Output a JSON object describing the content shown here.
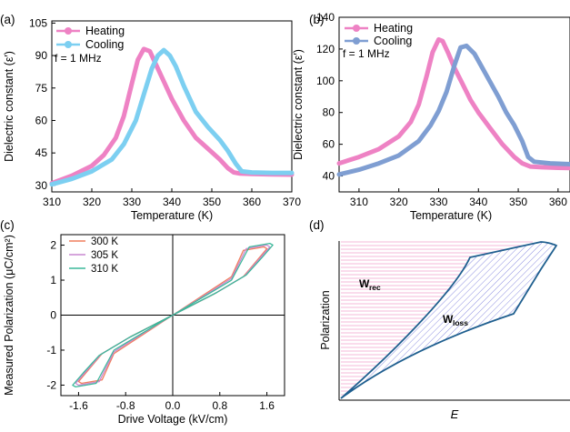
{
  "colors": {
    "heating": "#ee82c4",
    "cooling_a": "#7ccff1",
    "cooling_b": "#7f9ed2",
    "c300": "#f07f5f",
    "c305": "#c988d0",
    "c310": "#3cb89a",
    "hatch_loss": "#6f72d8",
    "hatch_rec": "#f29ac8",
    "outline_d": "#1f5f8f"
  },
  "chart_data": [
    {
      "id": "a",
      "type": "line",
      "panel_label": "(a)",
      "xlabel": "Temperature (K)",
      "ylabel": "Dielectric constant (ε′)",
      "xlim": [
        310,
        370
      ],
      "ylim": [
        27,
        106
      ],
      "xticks": [
        310,
        320,
        330,
        340,
        350,
        360,
        370
      ],
      "yticks": [
        30,
        45,
        60,
        75,
        90,
        105
      ],
      "annotation": "f = 1 MHz",
      "legend_position": "top-left",
      "series": [
        {
          "name": "Heating",
          "color_key": "heating",
          "x": [
            310,
            315,
            320,
            323,
            326,
            328,
            330,
            331.5,
            333,
            334.5,
            336,
            338,
            340,
            343,
            346,
            349,
            352,
            354,
            355.5,
            357,
            360,
            365,
            370
          ],
          "y": [
            31,
            34.5,
            39,
            44,
            52,
            62,
            77,
            88,
            93,
            92,
            86,
            78,
            70,
            60,
            52,
            47,
            42,
            38,
            36,
            35.5,
            35.3,
            35.1,
            35
          ]
        },
        {
          "name": "Cooling",
          "color_key": "cooling_a",
          "x": [
            310,
            315,
            320,
            325,
            328,
            331,
            333,
            335,
            336.5,
            338,
            339.5,
            341,
            343,
            346,
            349,
            352,
            354,
            356,
            357.5,
            360,
            365,
            370
          ],
          "y": [
            30.5,
            33,
            36.5,
            42,
            49,
            60,
            72,
            84,
            90,
            92.5,
            90,
            85,
            76,
            64,
            57,
            51,
            46,
            40,
            36.5,
            36,
            35.8,
            35.8
          ]
        }
      ]
    },
    {
      "id": "b",
      "type": "line",
      "panel_label": "(b)",
      "xlabel": "Temperature (K)",
      "ylabel": "Dielectric constant (ε′)",
      "xlim": [
        305,
        363
      ],
      "ylim": [
        30,
        140
      ],
      "xticks": [
        310,
        320,
        330,
        340,
        350,
        360
      ],
      "yticks": [
        40,
        60,
        80,
        100,
        120,
        140
      ],
      "annotation": "f = 1 MHz",
      "legend_position": "top-left",
      "series": [
        {
          "name": "Heating",
          "color_key": "heating",
          "x": [
            305,
            310,
            315,
            320,
            323,
            325,
            327,
            328.5,
            330,
            331,
            332.5,
            334,
            336,
            338,
            340,
            343,
            346,
            349,
            351,
            353,
            356,
            360,
            363
          ],
          "y": [
            48,
            52,
            57,
            65,
            74,
            85,
            103,
            118,
            126,
            125,
            117,
            108,
            98,
            88,
            80,
            70,
            60,
            52,
            48,
            46,
            45.5,
            45.2,
            45
          ]
        },
        {
          "name": "Cooling",
          "color_key": "cooling_b",
          "x": [
            305,
            310,
            315,
            320,
            325,
            328,
            330,
            332,
            334,
            335.5,
            337,
            339,
            341,
            343,
            345,
            347,
            349,
            351,
            352.5,
            354,
            358,
            363
          ],
          "y": [
            41,
            44,
            48,
            53,
            62,
            72,
            81,
            93,
            110,
            121,
            122,
            117,
            108,
            99,
            90,
            80,
            72,
            62,
            52,
            49,
            48,
            47.5
          ]
        }
      ]
    },
    {
      "id": "c",
      "type": "line",
      "panel_label": "(c)",
      "xlabel": "Drive Voltage (kV/cm)",
      "ylabel": "Measured Polarization (μC/cm²)",
      "xlim": [
        -1.9,
        1.9
      ],
      "ylim": [
        -2.3,
        2.3
      ],
      "xticks": [
        -1.6,
        -0.8,
        0.0,
        0.8,
        1.6
      ],
      "xtick_labels": [
        "-1.6",
        "-0.8",
        "0.0",
        "0.8",
        "1.6"
      ],
      "yticks": [
        -2,
        -1,
        0,
        1,
        2
      ],
      "legend_position": "top-left",
      "series": [
        {
          "name": "300 K",
          "color_key": "c300",
          "x": [
            0,
            0.5,
            1.0,
            1.2,
            1.55,
            1.6,
            1.45,
            1.2,
            0.7,
            0,
            -0.5,
            -1.0,
            -1.2,
            -1.55,
            -1.6,
            -1.45,
            -1.2,
            -0.7,
            0
          ],
          "y": [
            0,
            0.55,
            1.1,
            1.85,
            1.95,
            1.9,
            1.6,
            1.1,
            0.6,
            0,
            -0.55,
            -1.1,
            -1.85,
            -1.95,
            -1.9,
            -1.6,
            -1.1,
            -0.6,
            0
          ]
        },
        {
          "name": "305 K",
          "color_key": "c305",
          "x": [
            0,
            0.5,
            1.0,
            1.25,
            1.6,
            1.65,
            1.48,
            1.22,
            0.72,
            0,
            -0.5,
            -1.0,
            -1.25,
            -1.6,
            -1.65,
            -1.48,
            -1.22,
            -0.72,
            0
          ],
          "y": [
            0,
            0.52,
            1.05,
            1.9,
            2.0,
            1.95,
            1.62,
            1.12,
            0.62,
            0,
            -0.52,
            -1.05,
            -1.9,
            -2.0,
            -1.95,
            -1.62,
            -1.12,
            -0.62,
            0
          ],
          "_w": 1
        },
        {
          "name": "310 K",
          "color_key": "c310",
          "x": [
            0,
            0.5,
            1.0,
            1.3,
            1.65,
            1.7,
            1.52,
            1.25,
            0.75,
            0,
            -0.5,
            -1.0,
            -1.3,
            -1.65,
            -1.7,
            -1.52,
            -1.25,
            -0.75,
            0
          ],
          "y": [
            0,
            0.5,
            1.0,
            1.95,
            2.05,
            2.0,
            1.65,
            1.15,
            0.65,
            0,
            -0.5,
            -1.0,
            -1.95,
            -2.05,
            -2.0,
            -1.65,
            -1.15,
            -0.65,
            0
          ]
        }
      ]
    },
    {
      "id": "d",
      "type": "area",
      "panel_label": "(d)",
      "xlabel": "E",
      "ylabel": "Polarization",
      "labels": {
        "rec_main": "W",
        "rec_sub": "rec",
        "loss_main": "W",
        "loss_sub": "loss"
      }
    }
  ]
}
